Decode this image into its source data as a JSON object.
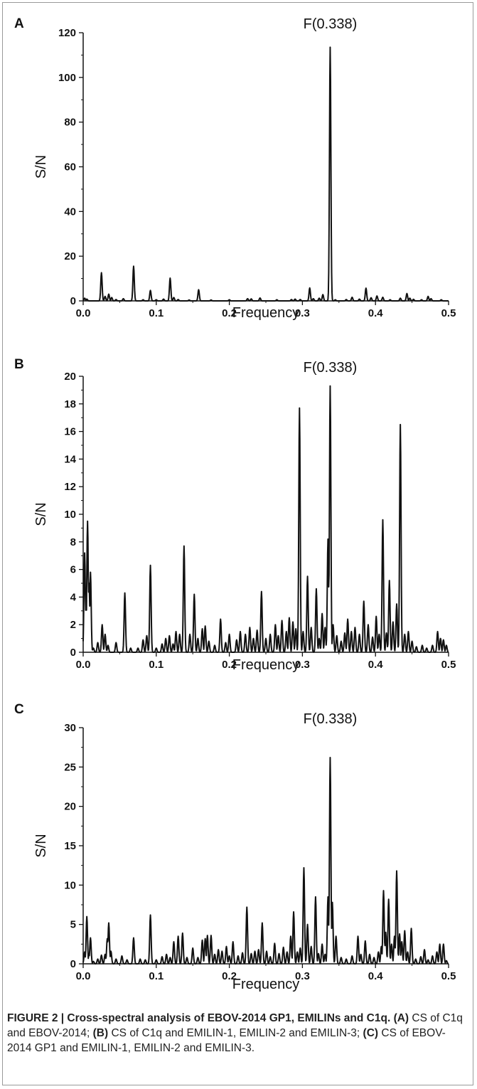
{
  "chart_data": [
    {
      "type": "line",
      "panel": "A",
      "xlabel": "Frequency",
      "ylabel": "S/N",
      "xlim": [
        0.0,
        0.5
      ],
      "ylim": [
        0,
        120
      ],
      "xticks": [
        "0.0",
        "0.1",
        "0.2",
        "0.3",
        "0.4",
        "0.5"
      ],
      "yticks": [
        "0",
        "20",
        "40",
        "60",
        "80",
        "100",
        "120"
      ],
      "annotations": [
        {
          "text": "F(0.338)",
          "x": 0.338
        }
      ],
      "peaks": [
        [
          0.002,
          1.2
        ],
        [
          0.005,
          0.8
        ],
        [
          0.025,
          12.6
        ],
        [
          0.03,
          2.0
        ],
        [
          0.035,
          3.0
        ],
        [
          0.039,
          1.5
        ],
        [
          0.045,
          0.6
        ],
        [
          0.055,
          1.0
        ],
        [
          0.069,
          15.5
        ],
        [
          0.082,
          0.5
        ],
        [
          0.092,
          4.7
        ],
        [
          0.1,
          0.5
        ],
        [
          0.11,
          0.8
        ],
        [
          0.119,
          10.2
        ],
        [
          0.124,
          1.5
        ],
        [
          0.13,
          0.6
        ],
        [
          0.145,
          0.4
        ],
        [
          0.158,
          5.0
        ],
        [
          0.175,
          0.4
        ],
        [
          0.2,
          0.5
        ],
        [
          0.225,
          1.0
        ],
        [
          0.23,
          0.9
        ],
        [
          0.242,
          1.3
        ],
        [
          0.265,
          0.5
        ],
        [
          0.285,
          0.6
        ],
        [
          0.29,
          0.8
        ],
        [
          0.297,
          0.6
        ],
        [
          0.31,
          5.8
        ],
        [
          0.315,
          1.0
        ],
        [
          0.323,
          1.2
        ],
        [
          0.328,
          2.8
        ],
        [
          0.338,
          113.5
        ],
        [
          0.345,
          0.5
        ],
        [
          0.36,
          0.6
        ],
        [
          0.368,
          1.6
        ],
        [
          0.378,
          0.8
        ],
        [
          0.387,
          5.7
        ],
        [
          0.394,
          1.4
        ],
        [
          0.402,
          2.2
        ],
        [
          0.41,
          1.6
        ],
        [
          0.42,
          0.5
        ],
        [
          0.434,
          1.2
        ],
        [
          0.443,
          3.3
        ],
        [
          0.447,
          1.2
        ],
        [
          0.452,
          0.7
        ],
        [
          0.463,
          0.5
        ],
        [
          0.472,
          2.0
        ],
        [
          0.476,
          1.0
        ],
        [
          0.49,
          0.5
        ]
      ]
    },
    {
      "type": "line",
      "panel": "B",
      "xlabel": "Frequency",
      "ylabel": "S/N",
      "xlim": [
        0.0,
        0.5
      ],
      "ylim": [
        0,
        20
      ],
      "xticks": [
        "0.0",
        "0.1",
        "0.2",
        "0.3",
        "0.4",
        "0.5"
      ],
      "yticks": [
        "0",
        "2",
        "4",
        "6",
        "8",
        "10",
        "12",
        "14",
        "16",
        "18",
        "20"
      ],
      "annotations": [
        {
          "text": "F(0.338)",
          "x": 0.338
        }
      ],
      "peaks": [
        [
          0.002,
          7.2
        ],
        [
          0.004,
          3.5
        ],
        [
          0.006,
          9.5
        ],
        [
          0.008,
          5.0
        ],
        [
          0.01,
          5.8
        ],
        [
          0.014,
          0.3
        ],
        [
          0.02,
          0.7
        ],
        [
          0.026,
          2.0
        ],
        [
          0.03,
          1.3
        ],
        [
          0.034,
          0.5
        ],
        [
          0.045,
          0.7
        ],
        [
          0.057,
          4.3
        ],
        [
          0.065,
          0.3
        ],
        [
          0.075,
          0.3
        ],
        [
          0.082,
          0.9
        ],
        [
          0.087,
          1.2
        ],
        [
          0.092,
          6.3
        ],
        [
          0.1,
          0.3
        ],
        [
          0.108,
          0.6
        ],
        [
          0.113,
          1.0
        ],
        [
          0.118,
          1.2
        ],
        [
          0.123,
          0.6
        ],
        [
          0.127,
          1.5
        ],
        [
          0.132,
          1.3
        ],
        [
          0.138,
          7.7
        ],
        [
          0.146,
          1.3
        ],
        [
          0.152,
          4.2
        ],
        [
          0.157,
          1.0
        ],
        [
          0.163,
          1.7
        ],
        [
          0.167,
          1.9
        ],
        [
          0.172,
          0.8
        ],
        [
          0.18,
          0.5
        ],
        [
          0.188,
          2.4
        ],
        [
          0.195,
          0.7
        ],
        [
          0.2,
          1.3
        ],
        [
          0.21,
          0.9
        ],
        [
          0.215,
          1.5
        ],
        [
          0.222,
          1.3
        ],
        [
          0.228,
          1.8
        ],
        [
          0.233,
          1.0
        ],
        [
          0.238,
          1.6
        ],
        [
          0.244,
          4.4
        ],
        [
          0.25,
          1.0
        ],
        [
          0.256,
          1.3
        ],
        [
          0.263,
          2.0
        ],
        [
          0.267,
          1.2
        ],
        [
          0.272,
          2.3
        ],
        [
          0.278,
          1.5
        ],
        [
          0.282,
          2.5
        ],
        [
          0.287,
          2.2
        ],
        [
          0.291,
          1.7
        ],
        [
          0.296,
          17.7
        ],
        [
          0.301,
          1.5
        ],
        [
          0.307,
          5.5
        ],
        [
          0.312,
          1.8
        ],
        [
          0.319,
          4.6
        ],
        [
          0.323,
          1.0
        ],
        [
          0.327,
          2.8
        ],
        [
          0.331,
          1.8
        ],
        [
          0.335,
          8.2
        ],
        [
          0.338,
          19.3
        ],
        [
          0.342,
          2.0
        ],
        [
          0.347,
          1.2
        ],
        [
          0.353,
          0.8
        ],
        [
          0.358,
          1.4
        ],
        [
          0.362,
          2.4
        ],
        [
          0.367,
          1.5
        ],
        [
          0.372,
          1.8
        ],
        [
          0.378,
          1.3
        ],
        [
          0.384,
          3.7
        ],
        [
          0.39,
          2.0
        ],
        [
          0.396,
          1.1
        ],
        [
          0.401,
          2.6
        ],
        [
          0.405,
          1.3
        ],
        [
          0.41,
          9.6
        ],
        [
          0.415,
          1.4
        ],
        [
          0.419,
          5.2
        ],
        [
          0.424,
          2.2
        ],
        [
          0.429,
          3.5
        ],
        [
          0.434,
          16.5
        ],
        [
          0.44,
          1.3
        ],
        [
          0.445,
          1.5
        ],
        [
          0.45,
          0.8
        ],
        [
          0.456,
          0.4
        ],
        [
          0.464,
          0.5
        ],
        [
          0.47,
          0.3
        ],
        [
          0.478,
          0.5
        ],
        [
          0.485,
          1.5
        ],
        [
          0.489,
          1.0
        ],
        [
          0.493,
          0.9
        ],
        [
          0.497,
          0.5
        ]
      ]
    },
    {
      "type": "line",
      "panel": "C",
      "xlabel": "Frequency",
      "ylabel": "S/N",
      "xlim": [
        0.0,
        0.5
      ],
      "ylim": [
        0,
        30
      ],
      "xticks": [
        "0.0",
        "0.1",
        "0.2",
        "0.3",
        "0.4",
        "0.5"
      ],
      "yticks": [
        "0",
        "5",
        "10",
        "15",
        "20",
        "25",
        "30"
      ],
      "annotations": [
        {
          "text": "F(0.338)",
          "x": 0.338
        }
      ],
      "peaks": [
        [
          0.002,
          1.5
        ],
        [
          0.005,
          6.0
        ],
        [
          0.008,
          1.2
        ],
        [
          0.01,
          3.3
        ],
        [
          0.014,
          0.3
        ],
        [
          0.02,
          0.6
        ],
        [
          0.025,
          1.1
        ],
        [
          0.03,
          1.2
        ],
        [
          0.033,
          3.2
        ],
        [
          0.035,
          5.2
        ],
        [
          0.038,
          1.6
        ],
        [
          0.045,
          0.6
        ],
        [
          0.053,
          1.0
        ],
        [
          0.06,
          0.5
        ],
        [
          0.069,
          3.3
        ],
        [
          0.078,
          0.6
        ],
        [
          0.085,
          0.5
        ],
        [
          0.092,
          6.2
        ],
        [
          0.1,
          0.5
        ],
        [
          0.108,
          0.9
        ],
        [
          0.114,
          1.2
        ],
        [
          0.119,
          0.8
        ],
        [
          0.124,
          2.8
        ],
        [
          0.13,
          3.5
        ],
        [
          0.136,
          3.9
        ],
        [
          0.142,
          0.8
        ],
        [
          0.15,
          2.0
        ],
        [
          0.157,
          0.8
        ],
        [
          0.163,
          3.0
        ],
        [
          0.167,
          3.2
        ],
        [
          0.17,
          3.6
        ],
        [
          0.175,
          3.6
        ],
        [
          0.18,
          1.2
        ],
        [
          0.185,
          1.8
        ],
        [
          0.19,
          1.6
        ],
        [
          0.196,
          2.2
        ],
        [
          0.2,
          1.0
        ],
        [
          0.205,
          2.8
        ],
        [
          0.212,
          1.0
        ],
        [
          0.218,
          1.4
        ],
        [
          0.224,
          7.2
        ],
        [
          0.23,
          1.3
        ],
        [
          0.235,
          1.6
        ],
        [
          0.24,
          1.8
        ],
        [
          0.245,
          5.2
        ],
        [
          0.251,
          1.6
        ],
        [
          0.256,
          0.9
        ],
        [
          0.262,
          2.6
        ],
        [
          0.268,
          1.3
        ],
        [
          0.274,
          2.1
        ],
        [
          0.279,
          1.5
        ],
        [
          0.284,
          3.5
        ],
        [
          0.288,
          6.6
        ],
        [
          0.293,
          1.5
        ],
        [
          0.297,
          2.0
        ],
        [
          0.302,
          12.2
        ],
        [
          0.307,
          5.0
        ],
        [
          0.312,
          2.2
        ],
        [
          0.318,
          8.5
        ],
        [
          0.322,
          1.3
        ],
        [
          0.327,
          2.5
        ],
        [
          0.331,
          1.2
        ],
        [
          0.335,
          8.5
        ],
        [
          0.338,
          26.2
        ],
        [
          0.341,
          7.8
        ],
        [
          0.346,
          3.5
        ],
        [
          0.353,
          0.8
        ],
        [
          0.36,
          0.6
        ],
        [
          0.368,
          1.0
        ],
        [
          0.376,
          3.5
        ],
        [
          0.38,
          1.2
        ],
        [
          0.386,
          2.9
        ],
        [
          0.392,
          1.2
        ],
        [
          0.398,
          0.8
        ],
        [
          0.404,
          1.5
        ],
        [
          0.408,
          2.2
        ],
        [
          0.411,
          9.3
        ],
        [
          0.414,
          4.0
        ],
        [
          0.418,
          8.2
        ],
        [
          0.422,
          2.5
        ],
        [
          0.426,
          3.5
        ],
        [
          0.429,
          11.8
        ],
        [
          0.433,
          3.8
        ],
        [
          0.436,
          2.8
        ],
        [
          0.44,
          4.2
        ],
        [
          0.444,
          1.5
        ],
        [
          0.449,
          4.5
        ],
        [
          0.455,
          0.6
        ],
        [
          0.462,
          0.9
        ],
        [
          0.467,
          1.8
        ],
        [
          0.472,
          0.5
        ],
        [
          0.478,
          1.0
        ],
        [
          0.484,
          1.5
        ],
        [
          0.488,
          2.5
        ],
        [
          0.493,
          2.5
        ],
        [
          0.497,
          0.4
        ]
      ]
    }
  ],
  "caption": {
    "label": "FIGURE 2 | Cross-spectral analysis of EBOV-2014 GP1, EMILINs and C1q.",
    "a_tag": "(A)",
    "a_text": " CS of C1q and EBOV-2014; ",
    "b_tag": "(B)",
    "b_text": " CS of C1q and EMILIN-1, EMILIN-2 and EMILIN-3; ",
    "c_tag": "(C)",
    "c_text": " CS of EBOV-2014 GP1 and EMILIN-1, EMILIN-2 and EMILIN-3."
  }
}
